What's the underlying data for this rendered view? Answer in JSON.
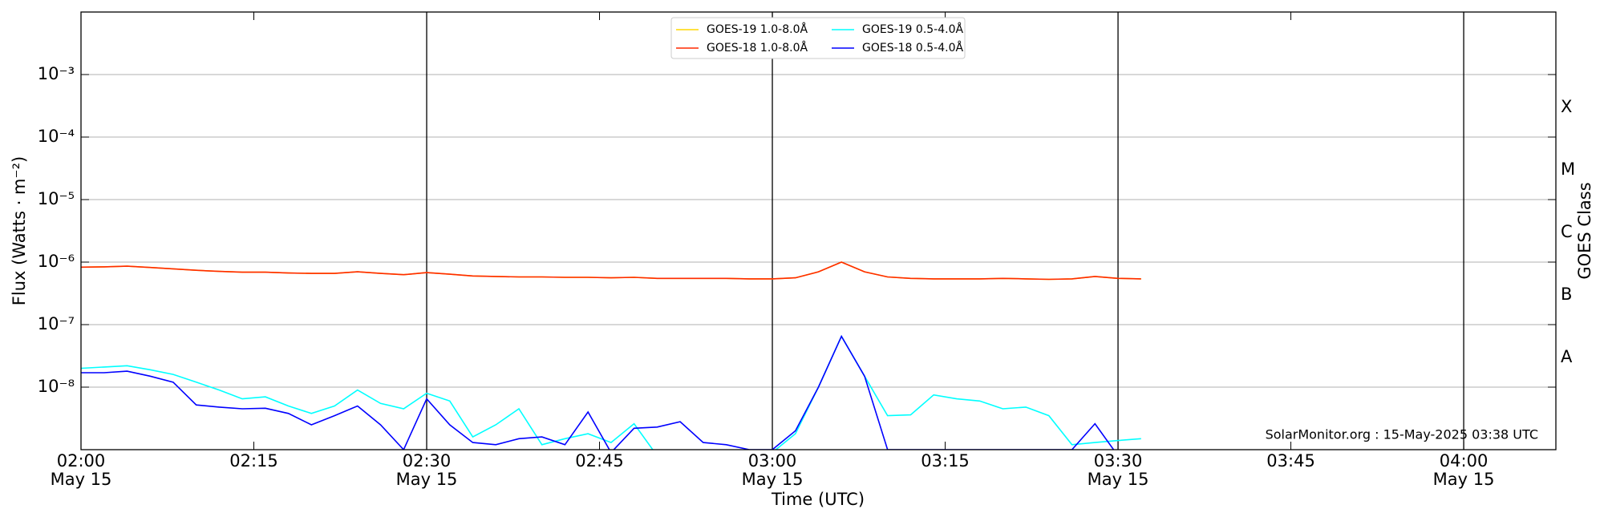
{
  "chart_data": {
    "type": "line",
    "xlabel": "Time (UTC)",
    "ylabel": "Flux (Watts · m⁻²)",
    "y2label": "GOES Class",
    "annotation": "SolarMonitor.org : 15-May-2025 03:38 UTC",
    "log_y": true,
    "grid": true,
    "legend": "top",
    "ylim": [
      1e-09,
      0.01
    ],
    "yticks": [
      {
        "value": 1e-08,
        "label": "10⁻⁸"
      },
      {
        "value": 1e-07,
        "label": "10⁻⁷"
      },
      {
        "value": 1e-06,
        "label": "10⁻⁶"
      },
      {
        "value": 1e-05,
        "label": "10⁻⁵"
      },
      {
        "value": 0.0001,
        "label": "10⁻⁴"
      },
      {
        "value": 0.001,
        "label": "10⁻³"
      }
    ],
    "class_labels": [
      {
        "value": 3e-08,
        "label": "A"
      },
      {
        "value": 3e-07,
        "label": "B"
      },
      {
        "value": 3e-06,
        "label": "C"
      },
      {
        "value": 3e-05,
        "label": "M"
      },
      {
        "value": 0.0003,
        "label": "X"
      }
    ],
    "xlim": [
      "02:00",
      "04:08"
    ],
    "xticks": [
      {
        "value": "02:00",
        "label": "02:00",
        "sublabel": "May 15"
      },
      "02:15",
      {
        "value": "02:30",
        "label": "02:30",
        "sublabel": "May 15"
      },
      "02:45",
      {
        "value": "03:00",
        "label": "03:00",
        "sublabel": "May 15"
      },
      "03:15",
      {
        "value": "03:30",
        "label": "03:30",
        "sublabel": "May 15"
      },
      "03:45",
      {
        "value": "04:00",
        "label": "04:00",
        "sublabel": "May 15"
      }
    ],
    "vlines": [
      "02:30",
      "03:00",
      "03:30",
      "04:00"
    ],
    "x": [
      "02:00",
      "02:02",
      "02:04",
      "02:06",
      "02:08",
      "02:10",
      "02:12",
      "02:14",
      "02:16",
      "02:18",
      "02:20",
      "02:22",
      "02:24",
      "02:26",
      "02:28",
      "02:30",
      "02:32",
      "02:34",
      "02:36",
      "02:38",
      "02:40",
      "02:42",
      "02:44",
      "02:46",
      "02:48",
      "02:50",
      "02:52",
      "02:54",
      "02:56",
      "02:58",
      "03:00",
      "03:02",
      "03:04",
      "03:06",
      "03:08",
      "03:10",
      "03:12",
      "03:14",
      "03:16",
      "03:18",
      "03:20",
      "03:22",
      "03:24",
      "03:26",
      "03:28",
      "03:30",
      "03:32"
    ],
    "series": [
      {
        "name": "GOES-19 1.0-8.0Å",
        "color": "#ffd700",
        "values": [
          8.3e-07,
          8.4e-07,
          8.6e-07,
          8.2e-07,
          7.8e-07,
          7.4e-07,
          7.1e-07,
          6.9e-07,
          6.9e-07,
          6.7e-07,
          6.6e-07,
          6.6e-07,
          7e-07,
          6.6e-07,
          6.3e-07,
          6.8e-07,
          6.4e-07,
          6e-07,
          5.9e-07,
          5.8e-07,
          5.8e-07,
          5.7e-07,
          5.7e-07,
          5.6e-07,
          5.7e-07,
          5.5e-07,
          5.5e-07,
          5.5e-07,
          5.5e-07,
          5.4e-07,
          5.4e-07,
          5.6e-07,
          7e-07,
          1e-06,
          7e-07,
          5.8e-07,
          5.5e-07,
          5.4e-07,
          5.4e-07,
          5.4e-07,
          5.5e-07,
          5.4e-07,
          5.3e-07,
          5.4e-07,
          5.9e-07,
          5.5e-07,
          5.4e-07
        ]
      },
      {
        "name": "GOES-18 1.0-8.0Å",
        "color": "#ff2a00",
        "values": [
          8.3e-07,
          8.4e-07,
          8.6e-07,
          8.2e-07,
          7.8e-07,
          7.4e-07,
          7.1e-07,
          6.9e-07,
          6.9e-07,
          6.7e-07,
          6.6e-07,
          6.6e-07,
          7e-07,
          6.6e-07,
          6.3e-07,
          6.8e-07,
          6.4e-07,
          6e-07,
          5.9e-07,
          5.8e-07,
          5.8e-07,
          5.7e-07,
          5.7e-07,
          5.6e-07,
          5.7e-07,
          5.5e-07,
          5.5e-07,
          5.5e-07,
          5.5e-07,
          5.4e-07,
          5.4e-07,
          5.6e-07,
          7e-07,
          1e-06,
          7e-07,
          5.8e-07,
          5.5e-07,
          5.4e-07,
          5.4e-07,
          5.4e-07,
          5.5e-07,
          5.4e-07,
          5.3e-07,
          5.4e-07,
          5.9e-07,
          5.5e-07,
          5.4e-07
        ]
      },
      {
        "name": "GOES-19 0.5-4.0Å",
        "color": "#00ffff",
        "values": [
          2e-08,
          2.1e-08,
          2.2e-08,
          1.9e-08,
          1.6e-08,
          1.2e-08,
          9e-09,
          6.5e-09,
          7e-09,
          5e-09,
          3.8e-09,
          5e-09,
          9e-09,
          5.5e-09,
          4.5e-09,
          8e-09,
          6e-09,
          1.6e-09,
          2.5e-09,
          4.5e-09,
          1.2e-09,
          1.5e-09,
          1.8e-09,
          1.3e-09,
          2.6e-09,
          8e-10,
          7e-10,
          8e-10,
          7e-10,
          8e-10,
          9e-10,
          1.8e-09,
          1e-08,
          6.5e-08,
          1.5e-08,
          3.5e-09,
          3.6e-09,
          7.5e-09,
          6.5e-09,
          6e-09,
          4.5e-09,
          4.8e-09,
          3.5e-09,
          1.2e-09,
          1.3e-09,
          1.4e-09,
          1.5e-09
        ]
      },
      {
        "name": "GOES-18 0.5-4.0Å",
        "color": "#0000ff",
        "values": [
          1.7e-08,
          1.7e-08,
          1.8e-08,
          1.5e-08,
          1.2e-08,
          5.2e-09,
          4.8e-09,
          4.5e-09,
          4.6e-09,
          3.8e-09,
          2.5e-09,
          3.5e-09,
          5e-09,
          2.5e-09,
          1e-09,
          6.5e-09,
          2.5e-09,
          1.3e-09,
          1.2e-09,
          1.5e-09,
          1.6e-09,
          1.2e-09,
          4e-09,
          9e-10,
          2.2e-09,
          2.3e-09,
          2.8e-09,
          1.3e-09,
          1.2e-09,
          1e-09,
          1e-09,
          2e-09,
          1e-08,
          6.5e-08,
          1.5e-08,
          1e-09,
          1e-09,
          1e-09,
          1e-09,
          1e-09,
          1e-09,
          1e-09,
          1e-09,
          1e-09,
          2.6e-09,
          8e-10,
          null
        ]
      }
    ]
  }
}
